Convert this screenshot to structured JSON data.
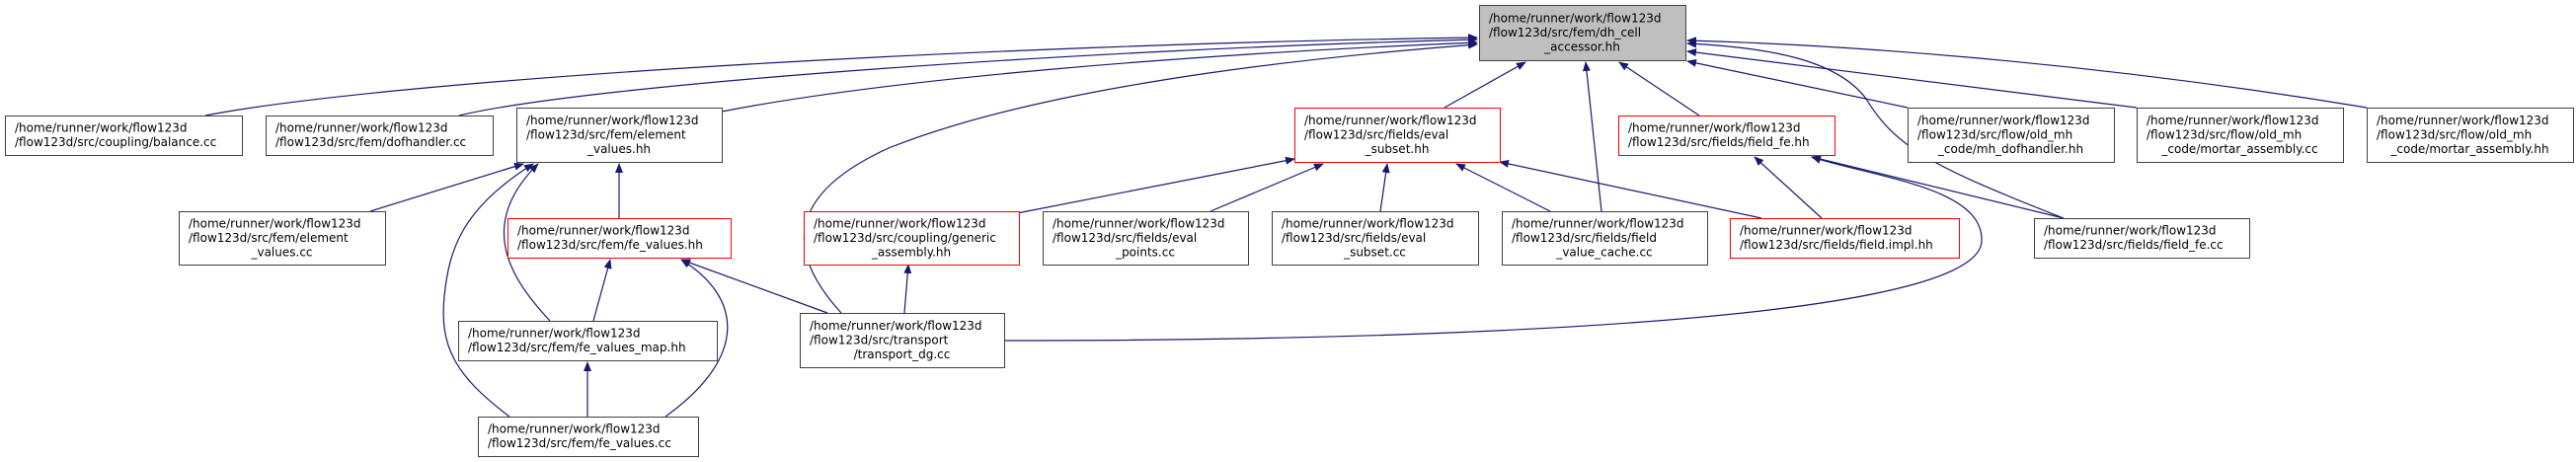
{
  "colors": {
    "edge": "#191970",
    "highlight_border": "#ff0000",
    "root_fill": "#bfbfbf",
    "border": "#404040"
  },
  "nodes": [
    {
      "id": "dh_cell_accessor",
      "lines": [
        "/home/runner/work/flow123d",
        "/flow123d/src/fem/dh_cell",
        "_accessor.hh"
      ],
      "style": "root"
    },
    {
      "id": "balance_cc",
      "lines": [
        "/home/runner/work/flow123d",
        "/flow123d/src/coupling/balance.cc"
      ],
      "style": "normal"
    },
    {
      "id": "dofhandler_cc",
      "lines": [
        "/home/runner/work/flow123d",
        "/flow123d/src/fem/dofhandler.cc"
      ],
      "style": "normal"
    },
    {
      "id": "element_values_hh",
      "lines": [
        "/home/runner/work/flow123d",
        "/flow123d/src/fem/element",
        "_values.hh"
      ],
      "style": "normal"
    },
    {
      "id": "element_values_cc",
      "lines": [
        "/home/runner/work/flow123d",
        "/flow123d/src/fem/element",
        "_values.cc"
      ],
      "style": "normal"
    },
    {
      "id": "fe_values_hh",
      "lines": [
        "/home/runner/work/flow123d",
        "/flow123d/src/fem/fe_values.hh"
      ],
      "style": "red"
    },
    {
      "id": "fe_values_map_hh",
      "lines": [
        "/home/runner/work/flow123d",
        "/flow123d/src/fem/fe_values_map.hh"
      ],
      "style": "normal"
    },
    {
      "id": "fe_values_cc",
      "lines": [
        "/home/runner/work/flow123d",
        "/flow123d/src/fem/fe_values.cc"
      ],
      "style": "normal"
    },
    {
      "id": "transport_dg_cc",
      "lines": [
        "/home/runner/work/flow123d",
        "/flow123d/src/transport",
        "/transport_dg.cc"
      ],
      "style": "normal"
    },
    {
      "id": "generic_assembly_hh",
      "lines": [
        "/home/runner/work/flow123d",
        "/flow123d/src/coupling/generic",
        "_assembly.hh"
      ],
      "style": "red"
    },
    {
      "id": "eval_subset_hh",
      "lines": [
        "/home/runner/work/flow123d",
        "/flow123d/src/fields/eval",
        "_subset.hh"
      ],
      "style": "red"
    },
    {
      "id": "eval_points_cc",
      "lines": [
        "/home/runner/work/flow123d",
        "/flow123d/src/fields/eval",
        "_points.cc"
      ],
      "style": "normal"
    },
    {
      "id": "eval_subset_cc",
      "lines": [
        "/home/runner/work/flow123d",
        "/flow123d/src/fields/eval",
        "_subset.cc"
      ],
      "style": "normal"
    },
    {
      "id": "field_value_cache_cc",
      "lines": [
        "/home/runner/work/flow123d",
        "/flow123d/src/fields/field",
        "_value_cache.cc"
      ],
      "style": "normal"
    },
    {
      "id": "field_fe_hh",
      "lines": [
        "/home/runner/work/flow123d",
        "/flow123d/src/fields/field_fe.hh"
      ],
      "style": "red"
    },
    {
      "id": "field_impl_hh",
      "lines": [
        "/home/runner/work/flow123d",
        "/flow123d/src/fields/field.impl.hh"
      ],
      "style": "red"
    },
    {
      "id": "field_fe_cc",
      "lines": [
        "/home/runner/work/flow123d",
        "/flow123d/src/fields/field_fe.cc"
      ],
      "style": "normal"
    },
    {
      "id": "mh_dofhandler_hh",
      "lines": [
        "/home/runner/work/flow123d",
        "/flow123d/src/flow/old_mh",
        "_code/mh_dofhandler.hh"
      ],
      "style": "normal"
    },
    {
      "id": "mortar_assembly_cc",
      "lines": [
        "/home/runner/work/flow123d",
        "/flow123d/src/flow/old_mh",
        "_code/mortar_assembly.cc"
      ],
      "style": "normal"
    },
    {
      "id": "mortar_assembly_hh",
      "lines": [
        "/home/runner/work/flow123d",
        "/flow123d/src/flow/old_mh",
        "_code/mortar_assembly.hh"
      ],
      "style": "normal"
    }
  ],
  "edges": [
    [
      "balance_cc",
      "dh_cell_accessor"
    ],
    [
      "dofhandler_cc",
      "dh_cell_accessor"
    ],
    [
      "element_values_hh",
      "dh_cell_accessor"
    ],
    [
      "transport_dg_cc",
      "dh_cell_accessor"
    ],
    [
      "eval_subset_hh",
      "dh_cell_accessor"
    ],
    [
      "field_value_cache_cc",
      "dh_cell_accessor"
    ],
    [
      "field_fe_hh",
      "dh_cell_accessor"
    ],
    [
      "field_fe_cc",
      "dh_cell_accessor"
    ],
    [
      "mh_dofhandler_hh",
      "dh_cell_accessor"
    ],
    [
      "mortar_assembly_cc",
      "dh_cell_accessor"
    ],
    [
      "mortar_assembly_hh",
      "dh_cell_accessor"
    ],
    [
      "element_values_cc",
      "element_values_hh"
    ],
    [
      "fe_values_hh",
      "element_values_hh"
    ],
    [
      "fe_values_map_hh",
      "element_values_hh"
    ],
    [
      "fe_values_cc",
      "element_values_hh"
    ],
    [
      "fe_values_map_hh",
      "fe_values_hh"
    ],
    [
      "fe_values_cc",
      "fe_values_hh"
    ],
    [
      "transport_dg_cc",
      "fe_values_hh"
    ],
    [
      "fe_values_cc",
      "fe_values_map_hh"
    ],
    [
      "generic_assembly_hh",
      "eval_subset_hh"
    ],
    [
      "eval_points_cc",
      "eval_subset_hh"
    ],
    [
      "eval_subset_cc",
      "eval_subset_hh"
    ],
    [
      "field_value_cache_cc",
      "eval_subset_hh"
    ],
    [
      "field_impl_hh",
      "eval_subset_hh"
    ],
    [
      "transport_dg_cc",
      "generic_assembly_hh"
    ],
    [
      "field_impl_hh",
      "field_fe_hh"
    ],
    [
      "field_fe_cc",
      "field_fe_hh"
    ],
    [
      "transport_dg_cc",
      "field_fe_hh"
    ]
  ]
}
